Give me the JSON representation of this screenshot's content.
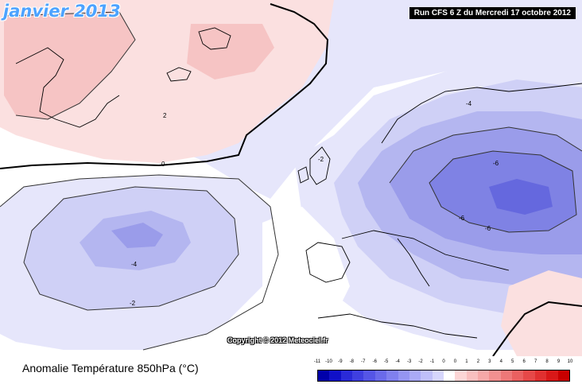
{
  "title": "janvier 2013",
  "run_info": "Run CFS 6 Z du Mercredi 17 octobre 2012",
  "copyright": "Copyright © 2012 Meteociel.fr",
  "variable_label": "Anomalie Température 850hPa (°C)",
  "contour_labels": [
    "-4",
    "-2",
    "2",
    "0",
    "-6"
  ],
  "legend": {
    "ticks": [
      "-11",
      "-10",
      "-9",
      "-8",
      "-7",
      "-6",
      "-5",
      "-4",
      "-3",
      "-2",
      "-1",
      "0",
      "0",
      "1",
      "2",
      "3",
      "4",
      "5",
      "6",
      "7",
      "8",
      "9",
      "10"
    ],
    "colors": [
      "#0000aa",
      "#1010c8",
      "#2a2ad8",
      "#3f3fe0",
      "#5555e6",
      "#6a6aea",
      "#8080ee",
      "#9595f2",
      "#aaaaf6",
      "#bfbff9",
      "#d6d6fc",
      "#ffffff",
      "#fcd6d6",
      "#f9bfbf",
      "#f6a8a8",
      "#f29090",
      "#ee7878",
      "#ea6060",
      "#e64848",
      "#e03030",
      "#d81818",
      "#c80000"
    ]
  },
  "colors": {
    "neutral": "#ffffff",
    "warm_1": "#fbe0e0",
    "warm_2": "#f6c4c4",
    "cold_1": "#e6e6fb",
    "cold_2": "#cfd0f6",
    "cold_3": "#b4b6f0",
    "cold_4": "#9a9cea",
    "cold_5": "#7f82e4",
    "cold_6": "#6568de",
    "coast": "#000000",
    "zero_line": "#000000"
  }
}
